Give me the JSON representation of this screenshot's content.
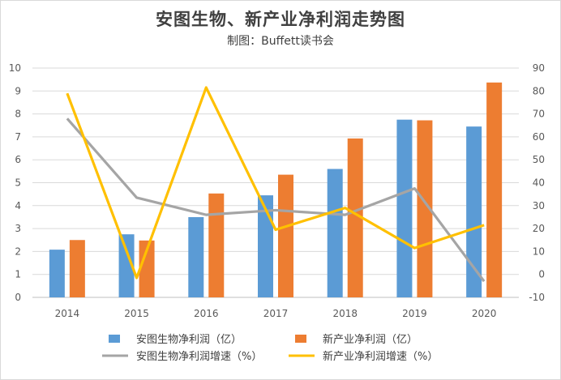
{
  "chart_data": {
    "type": "bar",
    "title": "安图生物、新产业净利润走势图",
    "subtitle": "制图：Buffett读书会",
    "categories": [
      "2014",
      "2015",
      "2016",
      "2017",
      "2018",
      "2019",
      "2020"
    ],
    "left_axis": {
      "ylim": [
        0,
        10
      ],
      "ticks": [
        "0",
        "1",
        "2",
        "3",
        "4",
        "5",
        "6",
        "7",
        "8",
        "9",
        "10"
      ]
    },
    "right_axis": {
      "ylim": [
        -10,
        90
      ],
      "ticks": [
        "-10",
        "0",
        "10",
        "20",
        "30",
        "40",
        "50",
        "60",
        "70",
        "80",
        "90"
      ]
    },
    "grid": true,
    "legend_position": "bottom",
    "series": [
      {
        "name": "安图生物净利润（亿）",
        "type": "bar",
        "axis": "left",
        "color": "#5b9bd5",
        "values": [
          2.08,
          2.75,
          3.5,
          4.45,
          5.6,
          7.75,
          7.45
        ]
      },
      {
        "name": "新产业净利润（亿）",
        "type": "bar",
        "axis": "left",
        "color": "#ed7d31",
        "values": [
          2.5,
          2.48,
          4.53,
          5.35,
          6.93,
          7.72,
          9.37
        ]
      },
      {
        "name": "安图生物净利润增速（%）",
        "type": "line",
        "axis": "right",
        "color": "#a5a5a5",
        "values": [
          68,
          33.5,
          26,
          28,
          26,
          37.5,
          -3
        ]
      },
      {
        "name": "新产业净利润增速（%）",
        "type": "line",
        "axis": "right",
        "color": "#ffc000",
        "values": [
          79,
          -1.5,
          81.5,
          19.5,
          29,
          11.5,
          21.5
        ]
      }
    ]
  }
}
